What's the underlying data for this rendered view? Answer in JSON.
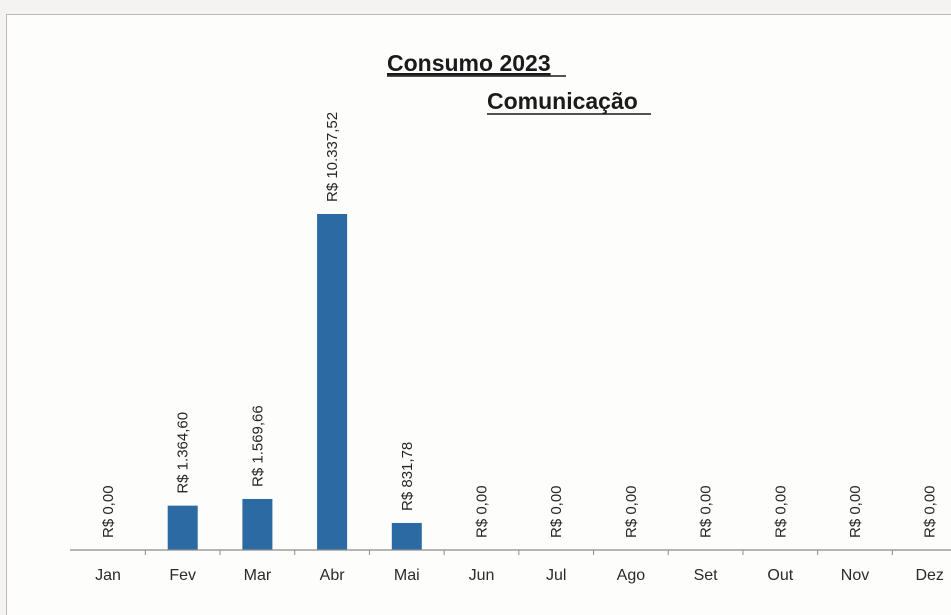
{
  "chart_data": {
    "type": "bar",
    "title": "Consumo 2023",
    "subtitle": "Comunicação",
    "xlabel": "",
    "ylabel": "",
    "categories": [
      "Jan",
      "Fev",
      "Mar",
      "Abr",
      "Mai",
      "Jun",
      "Jul",
      "Ago",
      "Set",
      "Out",
      "Nov",
      "Dez"
    ],
    "values": [
      0,
      1364.6,
      1569.66,
      10337.52,
      831.78,
      0,
      0,
      0,
      0,
      0,
      0,
      0
    ],
    "data_labels": [
      "R$ 0,00",
      "R$ 1.364,60",
      "R$ 1.569,66",
      "R$ 10.337,52",
      "R$ 831,78",
      "R$ 0,00",
      "R$ 0,00",
      "R$ 0,00",
      "R$ 0,00",
      "R$ 0,00",
      "R$ 0,00",
      "R$ 0,00"
    ],
    "ylim": [
      0,
      10337.52
    ],
    "grid": false,
    "legend": "none",
    "bar_color": "#2c6aa3"
  }
}
